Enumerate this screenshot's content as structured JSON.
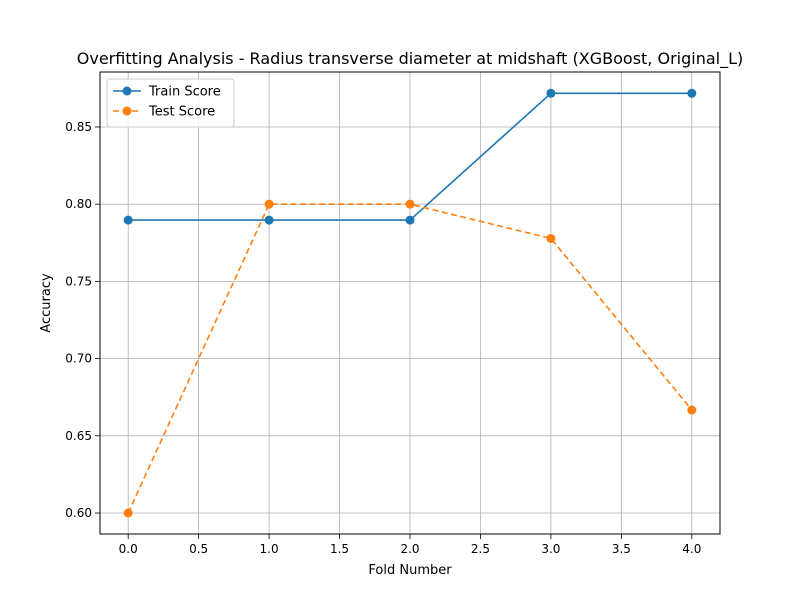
{
  "chart_data": {
    "type": "line",
    "title": "Overfitting Analysis - Radius transverse diameter at midshaft (XGBoost, Original_L)",
    "xlabel": "Fold Number",
    "ylabel": "Accuracy",
    "x": [
      0,
      1,
      2,
      3,
      4
    ],
    "xlim": [
      -0.2,
      4.2
    ],
    "ylim": [
      0.5864,
      0.8856
    ],
    "xticks": [
      0.0,
      0.5,
      1.0,
      1.5,
      2.0,
      2.5,
      3.0,
      3.5,
      4.0
    ],
    "xtick_labels": [
      "0.0",
      "0.5",
      "1.0",
      "1.5",
      "2.0",
      "2.5",
      "3.0",
      "3.5",
      "4.0"
    ],
    "yticks": [
      0.6,
      0.65,
      0.7,
      0.75,
      0.8,
      0.85
    ],
    "ytick_labels": [
      "0.60",
      "0.65",
      "0.70",
      "0.75",
      "0.80",
      "0.85"
    ],
    "grid": true,
    "legend_position": "top-left",
    "series": [
      {
        "name": "Train Score",
        "values": [
          0.7897,
          0.7897,
          0.7897,
          0.8718,
          0.8718
        ],
        "color": "#1f77b4",
        "line_style": "solid",
        "marker": "circle"
      },
      {
        "name": "Test Score",
        "values": [
          0.6,
          0.8,
          0.8,
          0.7778,
          0.6667
        ],
        "color": "#ff7f0e",
        "line_style": "dashed",
        "marker": "circle"
      }
    ]
  }
}
